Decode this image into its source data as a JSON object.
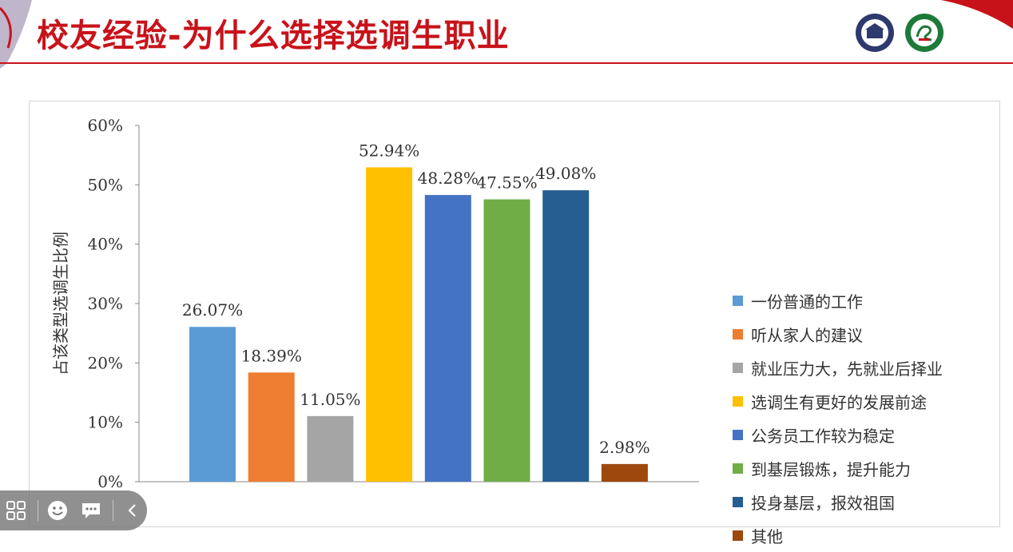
{
  "slide": {
    "title": "校友经验-为什么选择选调生职业"
  },
  "colors": {
    "title_red": "#c8121a",
    "toolbar_bg": "#787878"
  },
  "logos": [
    "university-seal-icon",
    "dragon-emblem-icon"
  ],
  "toolbar": {
    "icons": [
      "grid-menu-icon",
      "emoji-icon",
      "comment-icon",
      "chevron-left-icon"
    ]
  },
  "chart_data": {
    "type": "bar",
    "ylabel": "占该类型选调生比例",
    "ylim": [
      0,
      60
    ],
    "yticks": [
      "0%",
      "10%",
      "20%",
      "30%",
      "40%",
      "50%",
      "60%"
    ],
    "grid": false,
    "legend_position": "right",
    "categories": [
      "一份普通的工作",
      "听从家人的建议",
      "就业压力大，先就业后择业",
      "选调生有更好的发展前途",
      "公务员工作较为稳定",
      "到基层锻炼，提升能力",
      "投身基层，报效祖国",
      "其他"
    ],
    "values": [
      26.07,
      18.39,
      11.05,
      52.94,
      48.28,
      47.55,
      49.08,
      2.98
    ],
    "labels": [
      "26.07%",
      "18.39%",
      "11.05%",
      "52.94%",
      "48.28%",
      "47.55%",
      "49.08%",
      "2.98%"
    ],
    "colors": [
      "#5b9bd5",
      "#ed7d31",
      "#a5a5a5",
      "#ffc000",
      "#4472c4",
      "#70ad47",
      "#255e91",
      "#9e480e"
    ]
  }
}
